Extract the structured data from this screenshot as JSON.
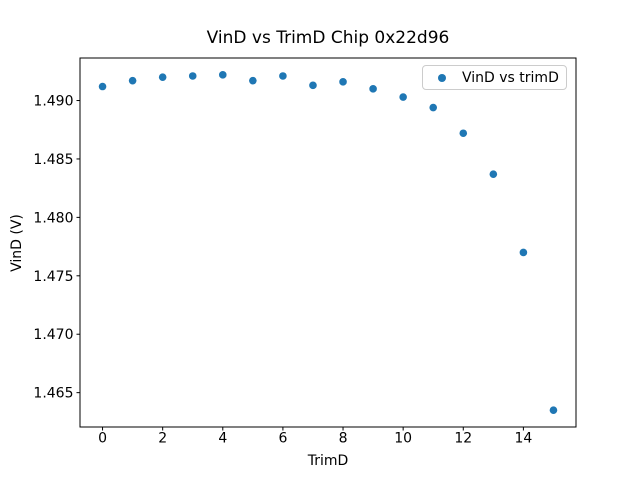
{
  "figure": {
    "background": "#ffffff",
    "text_color": "#000000",
    "spine_color": "#000000"
  },
  "chart_data": {
    "type": "scatter",
    "title": "VinD vs TrimD Chip 0x22d96",
    "xlabel": "TrimD",
    "ylabel": "VinD (V)",
    "grid": false,
    "xlim": [
      -0.75,
      15.75
    ],
    "ylim": [
      1.46206,
      1.49364
    ],
    "xticks": {
      "values": [
        0,
        2,
        4,
        6,
        8,
        10,
        12,
        14
      ],
      "labels": [
        "0",
        "2",
        "4",
        "6",
        "8",
        "10",
        "12",
        "14"
      ]
    },
    "yticks": {
      "values": [
        1.465,
        1.47,
        1.475,
        1.48,
        1.485,
        1.49
      ],
      "labels": [
        "1.465",
        "1.470",
        "1.475",
        "1.480",
        "1.485",
        "1.490"
      ]
    },
    "series": [
      {
        "name": "VinD vs trimD",
        "marker": "circle",
        "color": "#1f77b4",
        "x": [
          0,
          1,
          2,
          3,
          4,
          5,
          6,
          7,
          8,
          9,
          10,
          11,
          12,
          13,
          14,
          15
        ],
        "y": [
          1.4912,
          1.4917,
          1.492,
          1.4921,
          1.4922,
          1.4917,
          1.4921,
          1.4913,
          1.4916,
          1.491,
          1.4903,
          1.4894,
          1.4872,
          1.4837,
          1.477,
          1.4635
        ]
      }
    ],
    "legend": {
      "position": "upper right",
      "entries": [
        {
          "label": "VinD vs trimD",
          "marker": "circle",
          "marker_color": "#1f77b4"
        }
      ]
    }
  }
}
